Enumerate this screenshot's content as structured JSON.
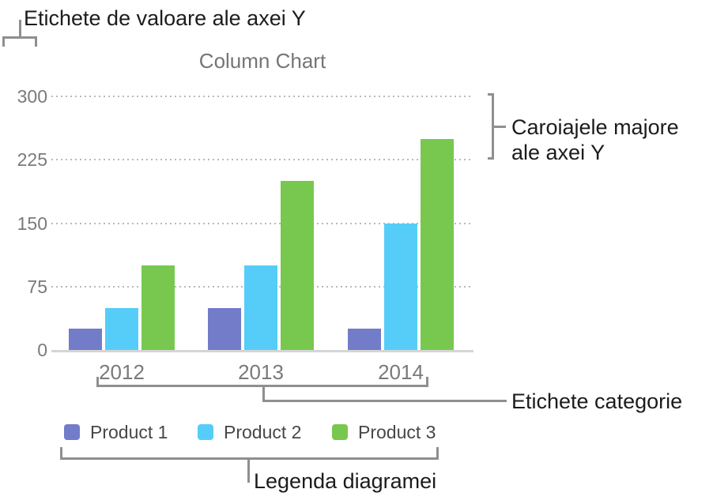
{
  "callouts": {
    "y_value_labels": "Etichete de valoare ale axei Y",
    "y_major_gridlines": [
      "Caroiajele majore",
      "ale axei Y"
    ],
    "category_labels": "Etichete categorie",
    "chart_legend": "Legenda diagramei"
  },
  "chart_data": {
    "type": "bar",
    "title": "Column Chart",
    "categories": [
      "2012",
      "2013",
      "2014"
    ],
    "series": [
      {
        "name": "Product 1",
        "color": "#737CC9",
        "values": [
          25,
          50,
          25
        ]
      },
      {
        "name": "Product 2",
        "color": "#55CDF8",
        "values": [
          50,
          100,
          150
        ]
      },
      {
        "name": "Product 3",
        "color": "#78C84F",
        "values": [
          100,
          200,
          250
        ]
      }
    ],
    "y_ticks": [
      0,
      75,
      150,
      225,
      300
    ],
    "ylim": [
      0,
      300
    ],
    "xlabel": "",
    "ylabel": "",
    "grid": "horizontal-dotted",
    "legend_position": "bottom"
  },
  "colors": {
    "background": "#FFFFFF",
    "bar_purple": "#737CC9",
    "bar_cyan": "#55CDF8",
    "bar_green": "#78C84F",
    "axis_text": "#7A7A7A",
    "title_text": "#757575",
    "legend_text": "#474747",
    "callout_text": "#1C1C1C",
    "bracket": "#8F8F8F",
    "gridline": "#B9B9B9",
    "axis_line": "#D5D5D5"
  }
}
